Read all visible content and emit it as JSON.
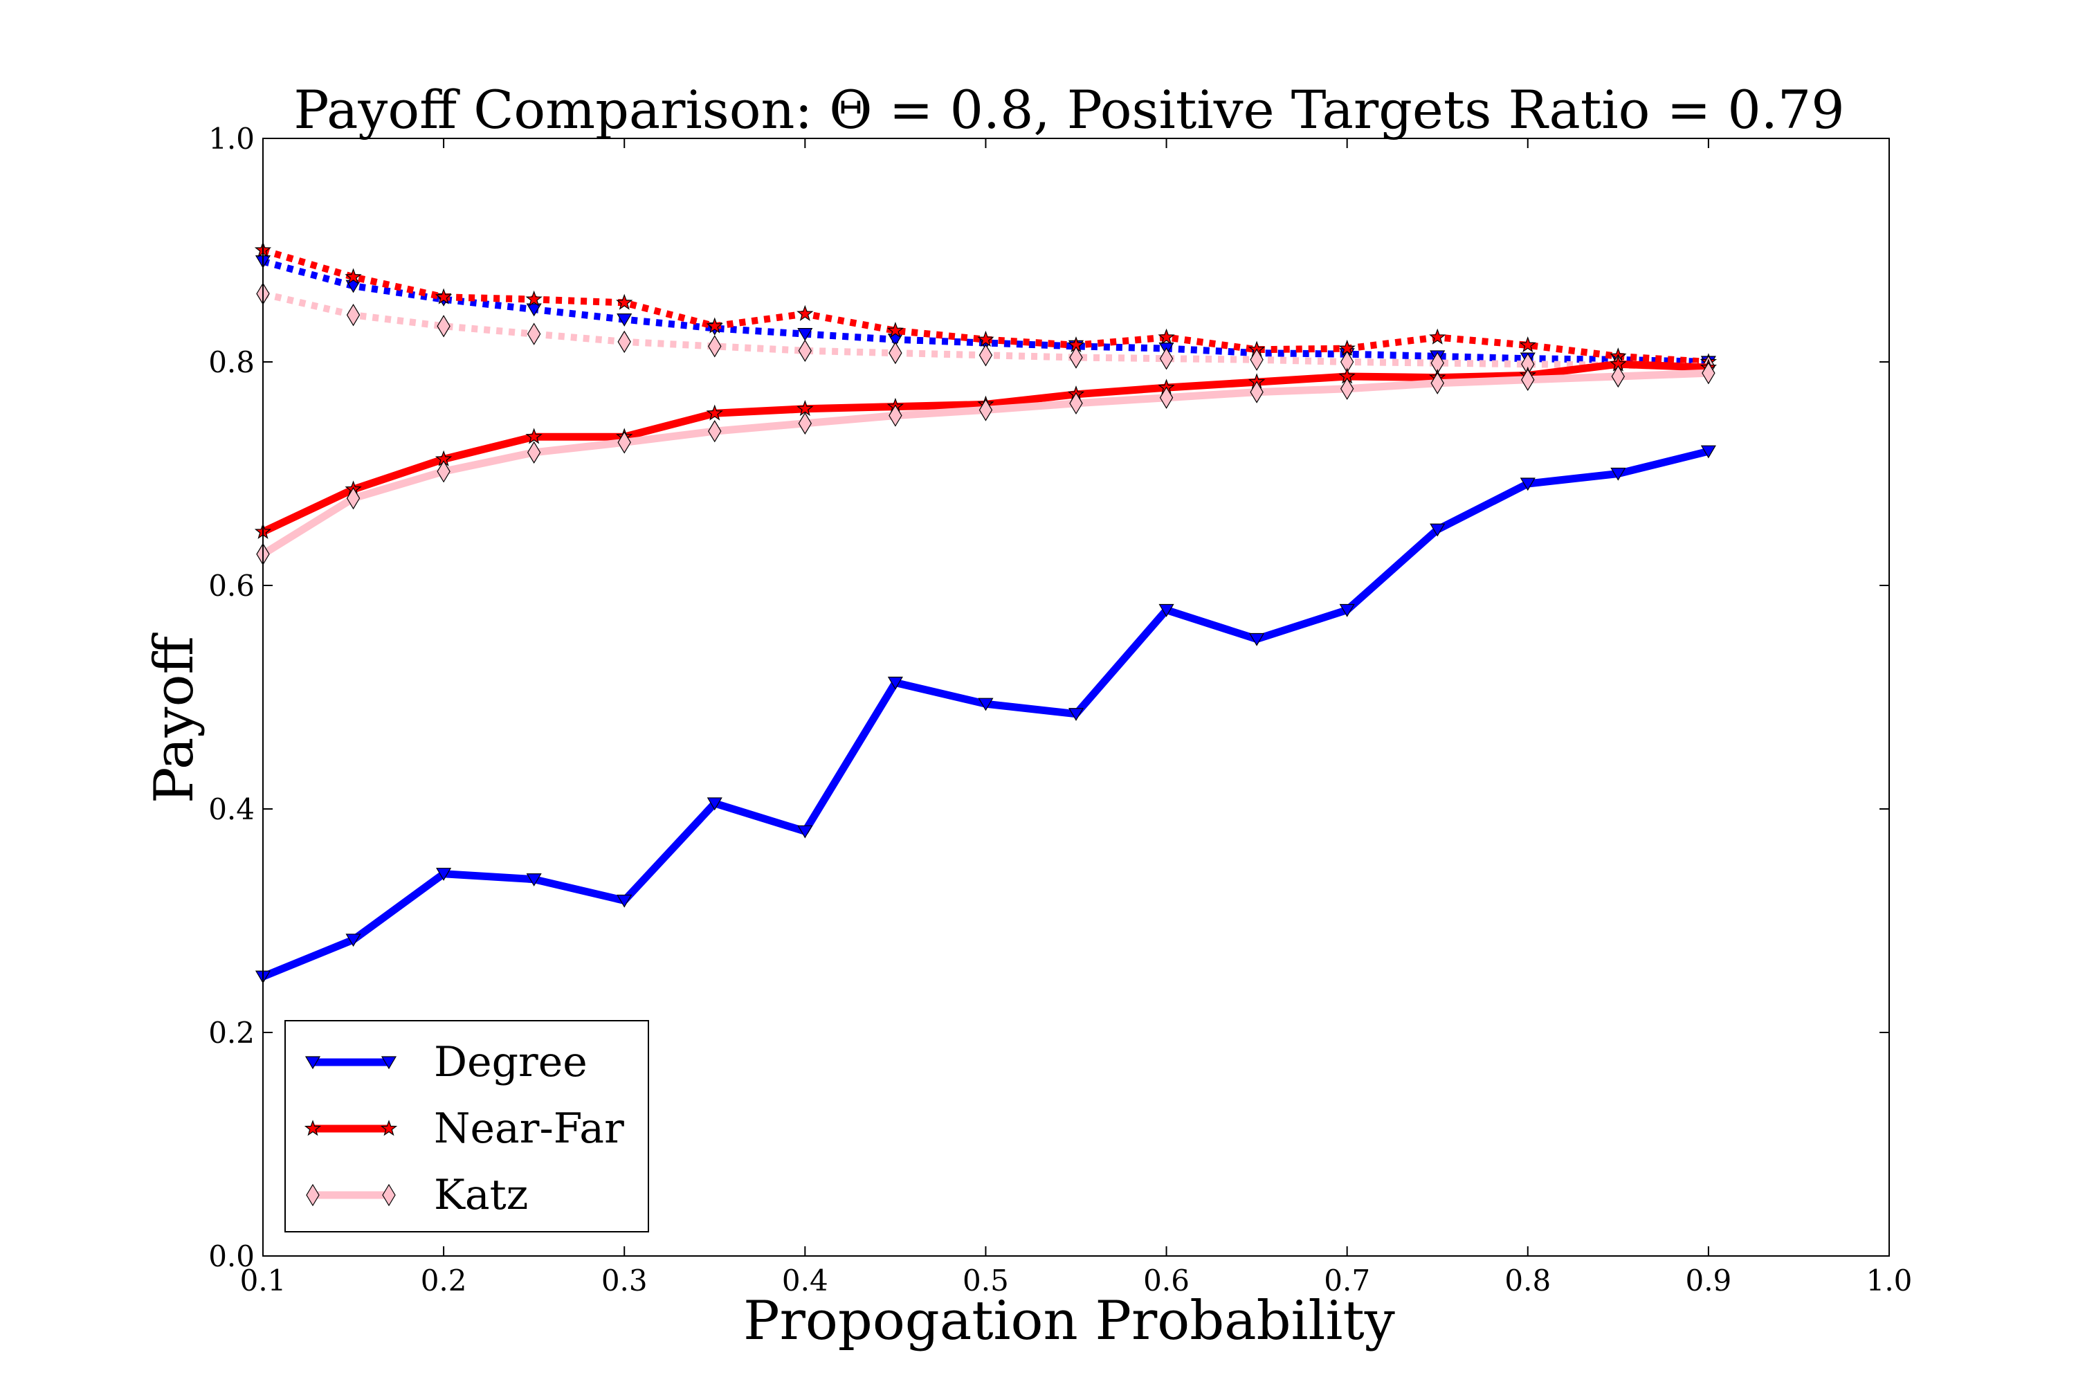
{
  "chart_data": {
    "type": "line",
    "title": "Payoff Comparison: Θ = 0.8, Positive Targets Ratio = 0.79",
    "xlabel": "Propogation Probability",
    "ylabel": "Payoff",
    "xlim": [
      0.1,
      1.0
    ],
    "ylim": [
      0.0,
      1.0
    ],
    "xticks": [
      "0.1",
      "0.2",
      "0.3",
      "0.4",
      "0.5",
      "0.6",
      "0.7",
      "0.8",
      "0.9",
      "1.0"
    ],
    "yticks": [
      "0.0",
      "0.2",
      "0.4",
      "0.6",
      "0.8",
      "1.0"
    ],
    "grid": false,
    "legend_position": "lower-left",
    "x": [
      0.1,
      0.15,
      0.2,
      0.25,
      0.3,
      0.35,
      0.4,
      0.45,
      0.5,
      0.55,
      0.6,
      0.65,
      0.7,
      0.75,
      0.8,
      0.85,
      0.9
    ],
    "series": [
      {
        "name": "Degree",
        "color": "#0000ff",
        "marker": "triangle-down",
        "linestyle": "solid",
        "in_legend": true,
        "values": [
          0.25,
          0.283,
          0.342,
          0.337,
          0.318,
          0.405,
          0.38,
          0.513,
          0.494,
          0.485,
          0.578,
          0.552,
          0.578,
          0.65,
          0.691,
          0.7,
          0.72
        ]
      },
      {
        "name": "Near-Far",
        "color": "#ff0000",
        "marker": "star",
        "linestyle": "solid",
        "in_legend": true,
        "values": [
          0.648,
          0.686,
          0.713,
          0.733,
          0.733,
          0.754,
          0.758,
          0.76,
          0.762,
          0.771,
          0.777,
          0.782,
          0.787,
          0.786,
          0.788,
          0.798,
          0.795
        ]
      },
      {
        "name": "Katz",
        "color": "#ffc0cb",
        "marker": "diamond",
        "linestyle": "solid",
        "in_legend": true,
        "values": [
          0.628,
          0.678,
          0.702,
          0.719,
          0.728,
          0.738,
          0.745,
          0.752,
          0.757,
          0.763,
          0.768,
          0.773,
          0.776,
          0.781,
          0.784,
          0.787,
          0.79
        ]
      },
      {
        "color": "#0000ff",
        "marker": "triangle-down",
        "linestyle": "dotted",
        "in_legend": false,
        "values": [
          0.89,
          0.868,
          0.856,
          0.847,
          0.838,
          0.83,
          0.825,
          0.82,
          0.817,
          0.814,
          0.812,
          0.808,
          0.807,
          0.805,
          0.803,
          0.802,
          0.8
        ]
      },
      {
        "color": "#ff0000",
        "marker": "star",
        "linestyle": "dotted",
        "in_legend": false,
        "values": [
          0.9,
          0.876,
          0.858,
          0.856,
          0.853,
          0.832,
          0.843,
          0.828,
          0.82,
          0.815,
          0.822,
          0.811,
          0.812,
          0.822,
          0.815,
          0.805,
          0.8
        ]
      },
      {
        "color": "#ffc0cb",
        "marker": "diamond",
        "linestyle": "dotted",
        "in_legend": false,
        "values": [
          0.861,
          0.842,
          0.832,
          0.825,
          0.818,
          0.814,
          0.81,
          0.808,
          0.806,
          0.804,
          0.803,
          0.802,
          0.8,
          0.799,
          0.798,
          0.797,
          0.796
        ]
      }
    ]
  }
}
